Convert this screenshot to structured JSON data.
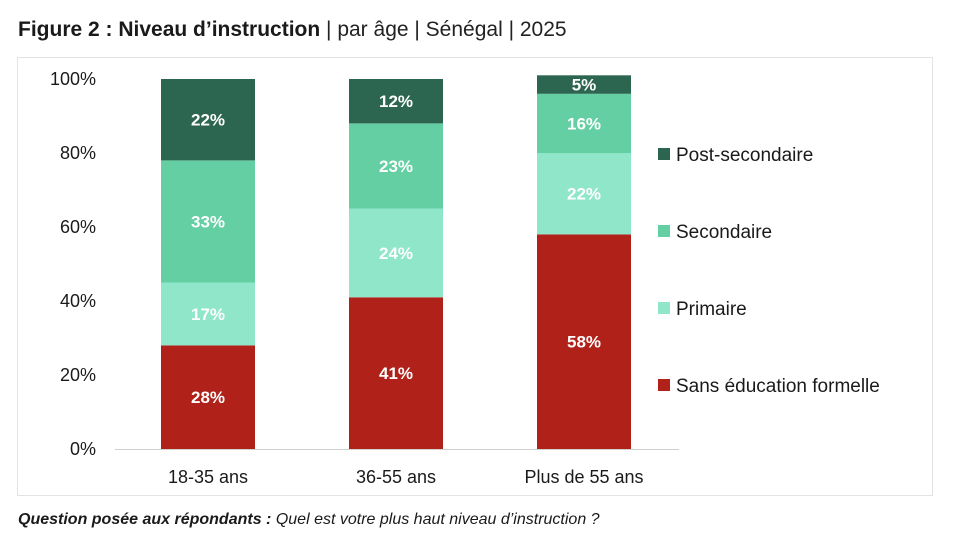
{
  "figure": {
    "title_bold": "Figure 2 : Niveau d’instruction",
    "title_rest": " | par âge | Sénégal | 2025"
  },
  "caption": {
    "bold": "Question posée aux répondants :",
    "text": " Quel est votre plus haut niveau d’instruction ?"
  },
  "chart_data": {
    "type": "bar",
    "stacked": true,
    "categories": [
      "18-35 ans",
      "36-55 ans",
      "Plus de 55 ans"
    ],
    "series": [
      {
        "name": "Sans éducation formelle",
        "values": [
          28,
          41,
          58
        ],
        "labels": [
          "28%",
          "41%",
          "58%"
        ],
        "color": "#b0211a"
      },
      {
        "name": "Primaire",
        "values": [
          17,
          24,
          22
        ],
        "labels": [
          "17%",
          "24%",
          "22%"
        ],
        "color": "#90e6c9"
      },
      {
        "name": "Secondaire",
        "values": [
          33,
          23,
          16
        ],
        "labels": [
          "33%",
          "23%",
          "16%"
        ],
        "color": "#64cfa3"
      },
      {
        "name": "Post-secondaire",
        "values": [
          22,
          12,
          5
        ],
        "labels": [
          "22%",
          "12%",
          "5%"
        ],
        "color": "#2d6650"
      }
    ],
    "ylim": [
      0,
      100
    ],
    "yticks": [
      "0%",
      "20%",
      "40%",
      "60%",
      "80%",
      "100%"
    ],
    "grid": false,
    "legend_position": "right"
  }
}
